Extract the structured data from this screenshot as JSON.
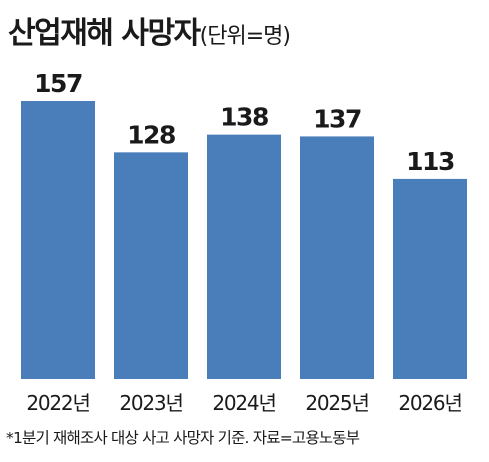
{
  "header": {
    "title": "산업재해 사망자",
    "unit": "(단위=명)"
  },
  "chart_data": {
    "type": "bar",
    "title": "산업재해 사망자",
    "unit": "(단위=명)",
    "categories": [
      "2022년",
      "2023년",
      "2024년",
      "2025년",
      "2026년"
    ],
    "values": [
      157,
      128,
      138,
      137,
      113
    ],
    "ylim": [
      0,
      157
    ],
    "grid": false,
    "bar_color": "#4a7ebb"
  },
  "footer": {
    "note": "*1분기 재해조사 대상 사고 사망자 기준. 자료=고용노동부"
  }
}
